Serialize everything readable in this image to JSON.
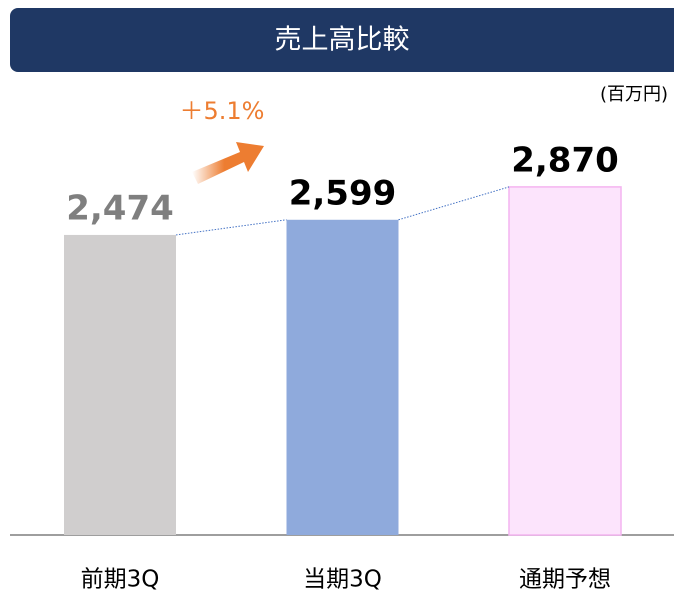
{
  "chart_data": {
    "type": "bar",
    "title": "売上高比較",
    "unit_label": "(百万円)",
    "annotation": "＋5.1%",
    "categories": [
      "前期3Q",
      "当期3Q",
      "通期予想"
    ],
    "values": [
      2474,
      2599,
      2870
    ],
    "value_labels": [
      "2,474",
      "2,599",
      "2,870"
    ],
    "colors": [
      "#d0cece",
      "#8faadc",
      "#fce4fc"
    ],
    "label_colors": [
      "#7f7f7f",
      "#000000",
      "#000000"
    ],
    "ylim": [
      0,
      3500
    ]
  }
}
